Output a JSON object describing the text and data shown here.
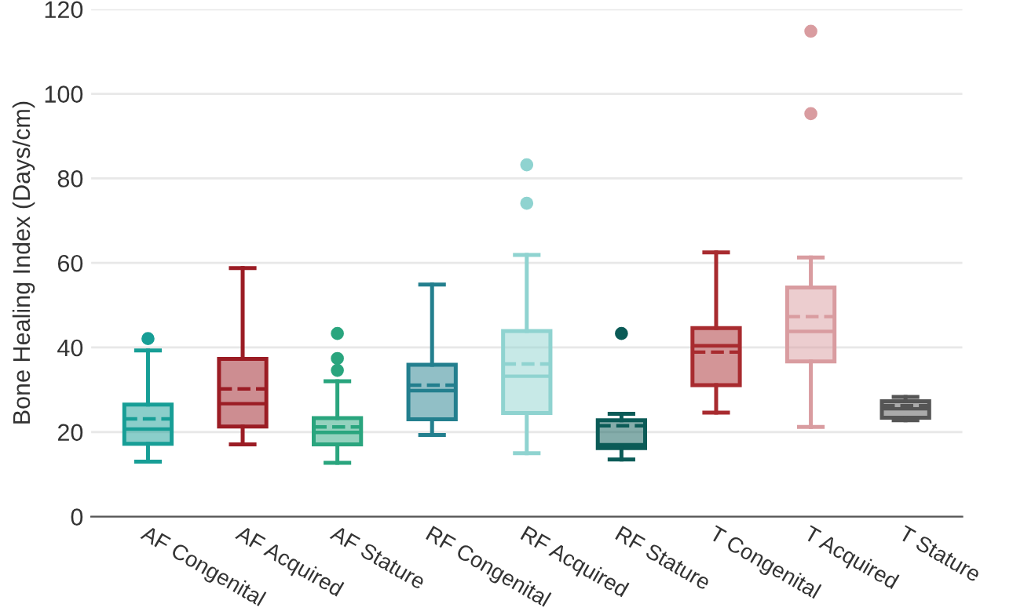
{
  "chart_data": {
    "type": "box",
    "ylabel": "Bone Healing Index (Days/cm)",
    "categories": [
      "AF Congenital",
      "AF Acquired",
      "AF Stature",
      "RF Congenital",
      "RF Acquired",
      "RF Stature",
      "T Congenital",
      "T Acquired",
      "T Stature"
    ],
    "colors": [
      "#179e96",
      "#9b1c24",
      "#2aa57e",
      "#237f8e",
      "#8fd3d0",
      "#0b5b57",
      "#a82b2f",
      "#d99ca0",
      "#555555"
    ],
    "boxes": [
      {
        "low": 13,
        "q1": 17.2,
        "median": 20.7,
        "q3": 26.5,
        "high": 39.3,
        "mean": 23.1,
        "outliers": [
          42.1
        ]
      },
      {
        "low": 17.1,
        "q1": 21.3,
        "median": 26.7,
        "q3": 37.3,
        "high": 58.8,
        "mean": 30.2
      },
      {
        "low": 12.7,
        "q1": 17.1,
        "median": 19.9,
        "q3": 23.3,
        "high": 32,
        "mean": 21.2,
        "outliers": [
          43.3,
          37.4,
          34.6
        ]
      },
      {
        "low": 19.3,
        "q1": 23,
        "median": 29.8,
        "q3": 35.9,
        "high": 54.9,
        "mean": 31.1
      },
      {
        "low": 15,
        "q1": 24.5,
        "median": 33.2,
        "q3": 43.9,
        "high": 61.9,
        "mean": 36.1,
        "outliers": [
          83.2,
          74.1
        ]
      },
      {
        "low": 13.5,
        "q1": 16.2,
        "median": 17,
        "q3": 22.8,
        "high": 24.3,
        "mean": 21.5,
        "outliers": [
          43.3
        ]
      },
      {
        "low": 24.6,
        "q1": 31.1,
        "median": 40.4,
        "q3": 44.6,
        "high": 62.5,
        "mean": 38.9
      },
      {
        "low": 21.2,
        "q1": 36.7,
        "median": 43.8,
        "q3": 54.2,
        "high": 61.3,
        "mean": 47.3,
        "outliers": [
          114.8,
          95.3
        ]
      },
      {
        "low": 22.8,
        "q1": 23.4,
        "median": 25.5,
        "q3": 27.3,
        "high": 28.3,
        "mean": 26.2
      }
    ],
    "ylim": [
      0,
      120
    ],
    "yticks": [
      0,
      20,
      40,
      60,
      80,
      100,
      120
    ],
    "grid": "y"
  }
}
